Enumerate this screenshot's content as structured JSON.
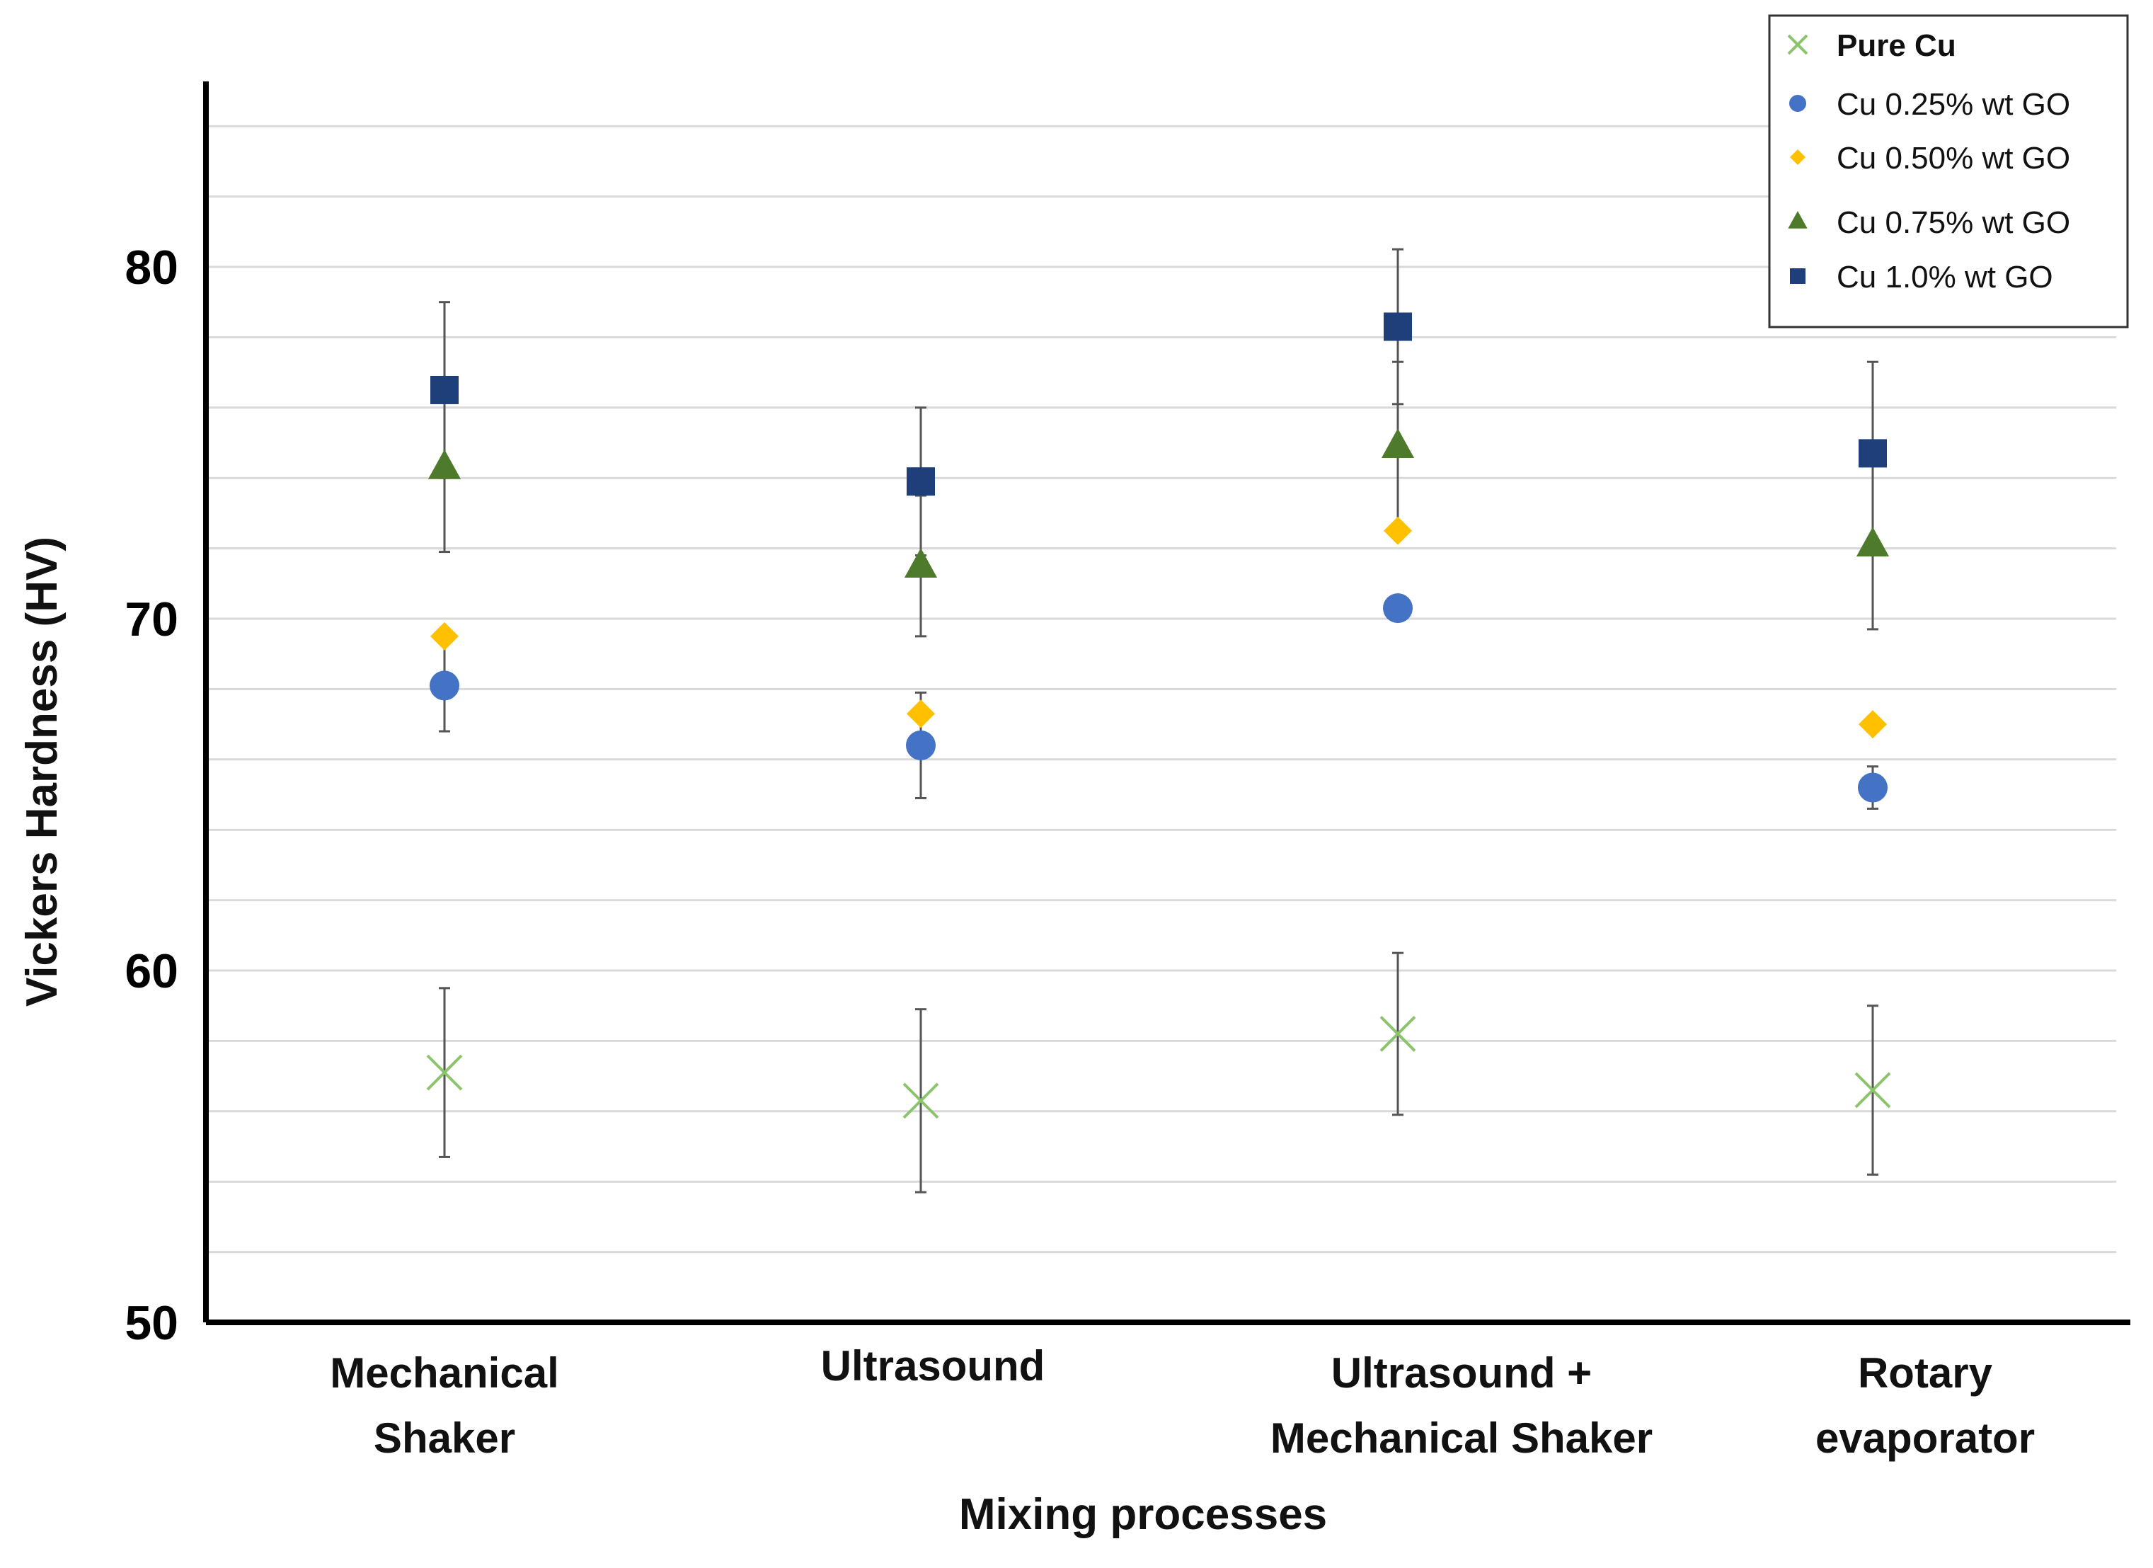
{
  "chart_data": {
    "type": "scatter",
    "title": "",
    "xlabel": "Mixing processes",
    "ylabel": "Vickers Hardness (HV)",
    "ylim": [
      50,
      85
    ],
    "yticks": [
      50,
      60,
      70,
      80
    ],
    "grid": true,
    "legend_position": "top-right",
    "categories": [
      [
        "Mechanical",
        "Shaker"
      ],
      [
        "Ultrasound"
      ],
      [
        "Ultrasound +",
        "Mechanical Shaker"
      ],
      [
        "Rotary",
        "evaporator"
      ]
    ],
    "series": [
      {
        "name": "Pure Cu",
        "marker": "x",
        "color": "#8cc46e",
        "values": [
          57.1,
          56.3,
          58.2,
          56.6
        ],
        "errors": [
          2.4,
          2.6,
          2.3,
          2.4
        ]
      },
      {
        "name": "Cu 0.25% wt GO",
        "marker": "circle",
        "color": "#4472c4",
        "values": [
          68.1,
          66.4,
          70.3,
          65.2
        ],
        "errors": [
          1.3,
          1.5,
          0,
          0.6
        ]
      },
      {
        "name": "Cu 0.50% wt GO",
        "marker": "diamond",
        "color": "#ffc000",
        "values": [
          69.5,
          67.3,
          72.5,
          67.0
        ],
        "errors": [
          0,
          0,
          0,
          0
        ]
      },
      {
        "name": "Cu 0.75% wt GO",
        "marker": "triangle",
        "color": "#4e7a2c",
        "values": [
          74.3,
          71.5,
          74.9,
          72.1
        ],
        "errors": [
          2.4,
          2.0,
          2.4,
          2.4
        ]
      },
      {
        "name": "Cu 1.0% wt GO",
        "marker": "square",
        "color": "#1f3f7a",
        "values": [
          76.5,
          73.9,
          78.3,
          74.7
        ],
        "errors": [
          2.5,
          2.1,
          2.2,
          2.6
        ]
      }
    ]
  }
}
